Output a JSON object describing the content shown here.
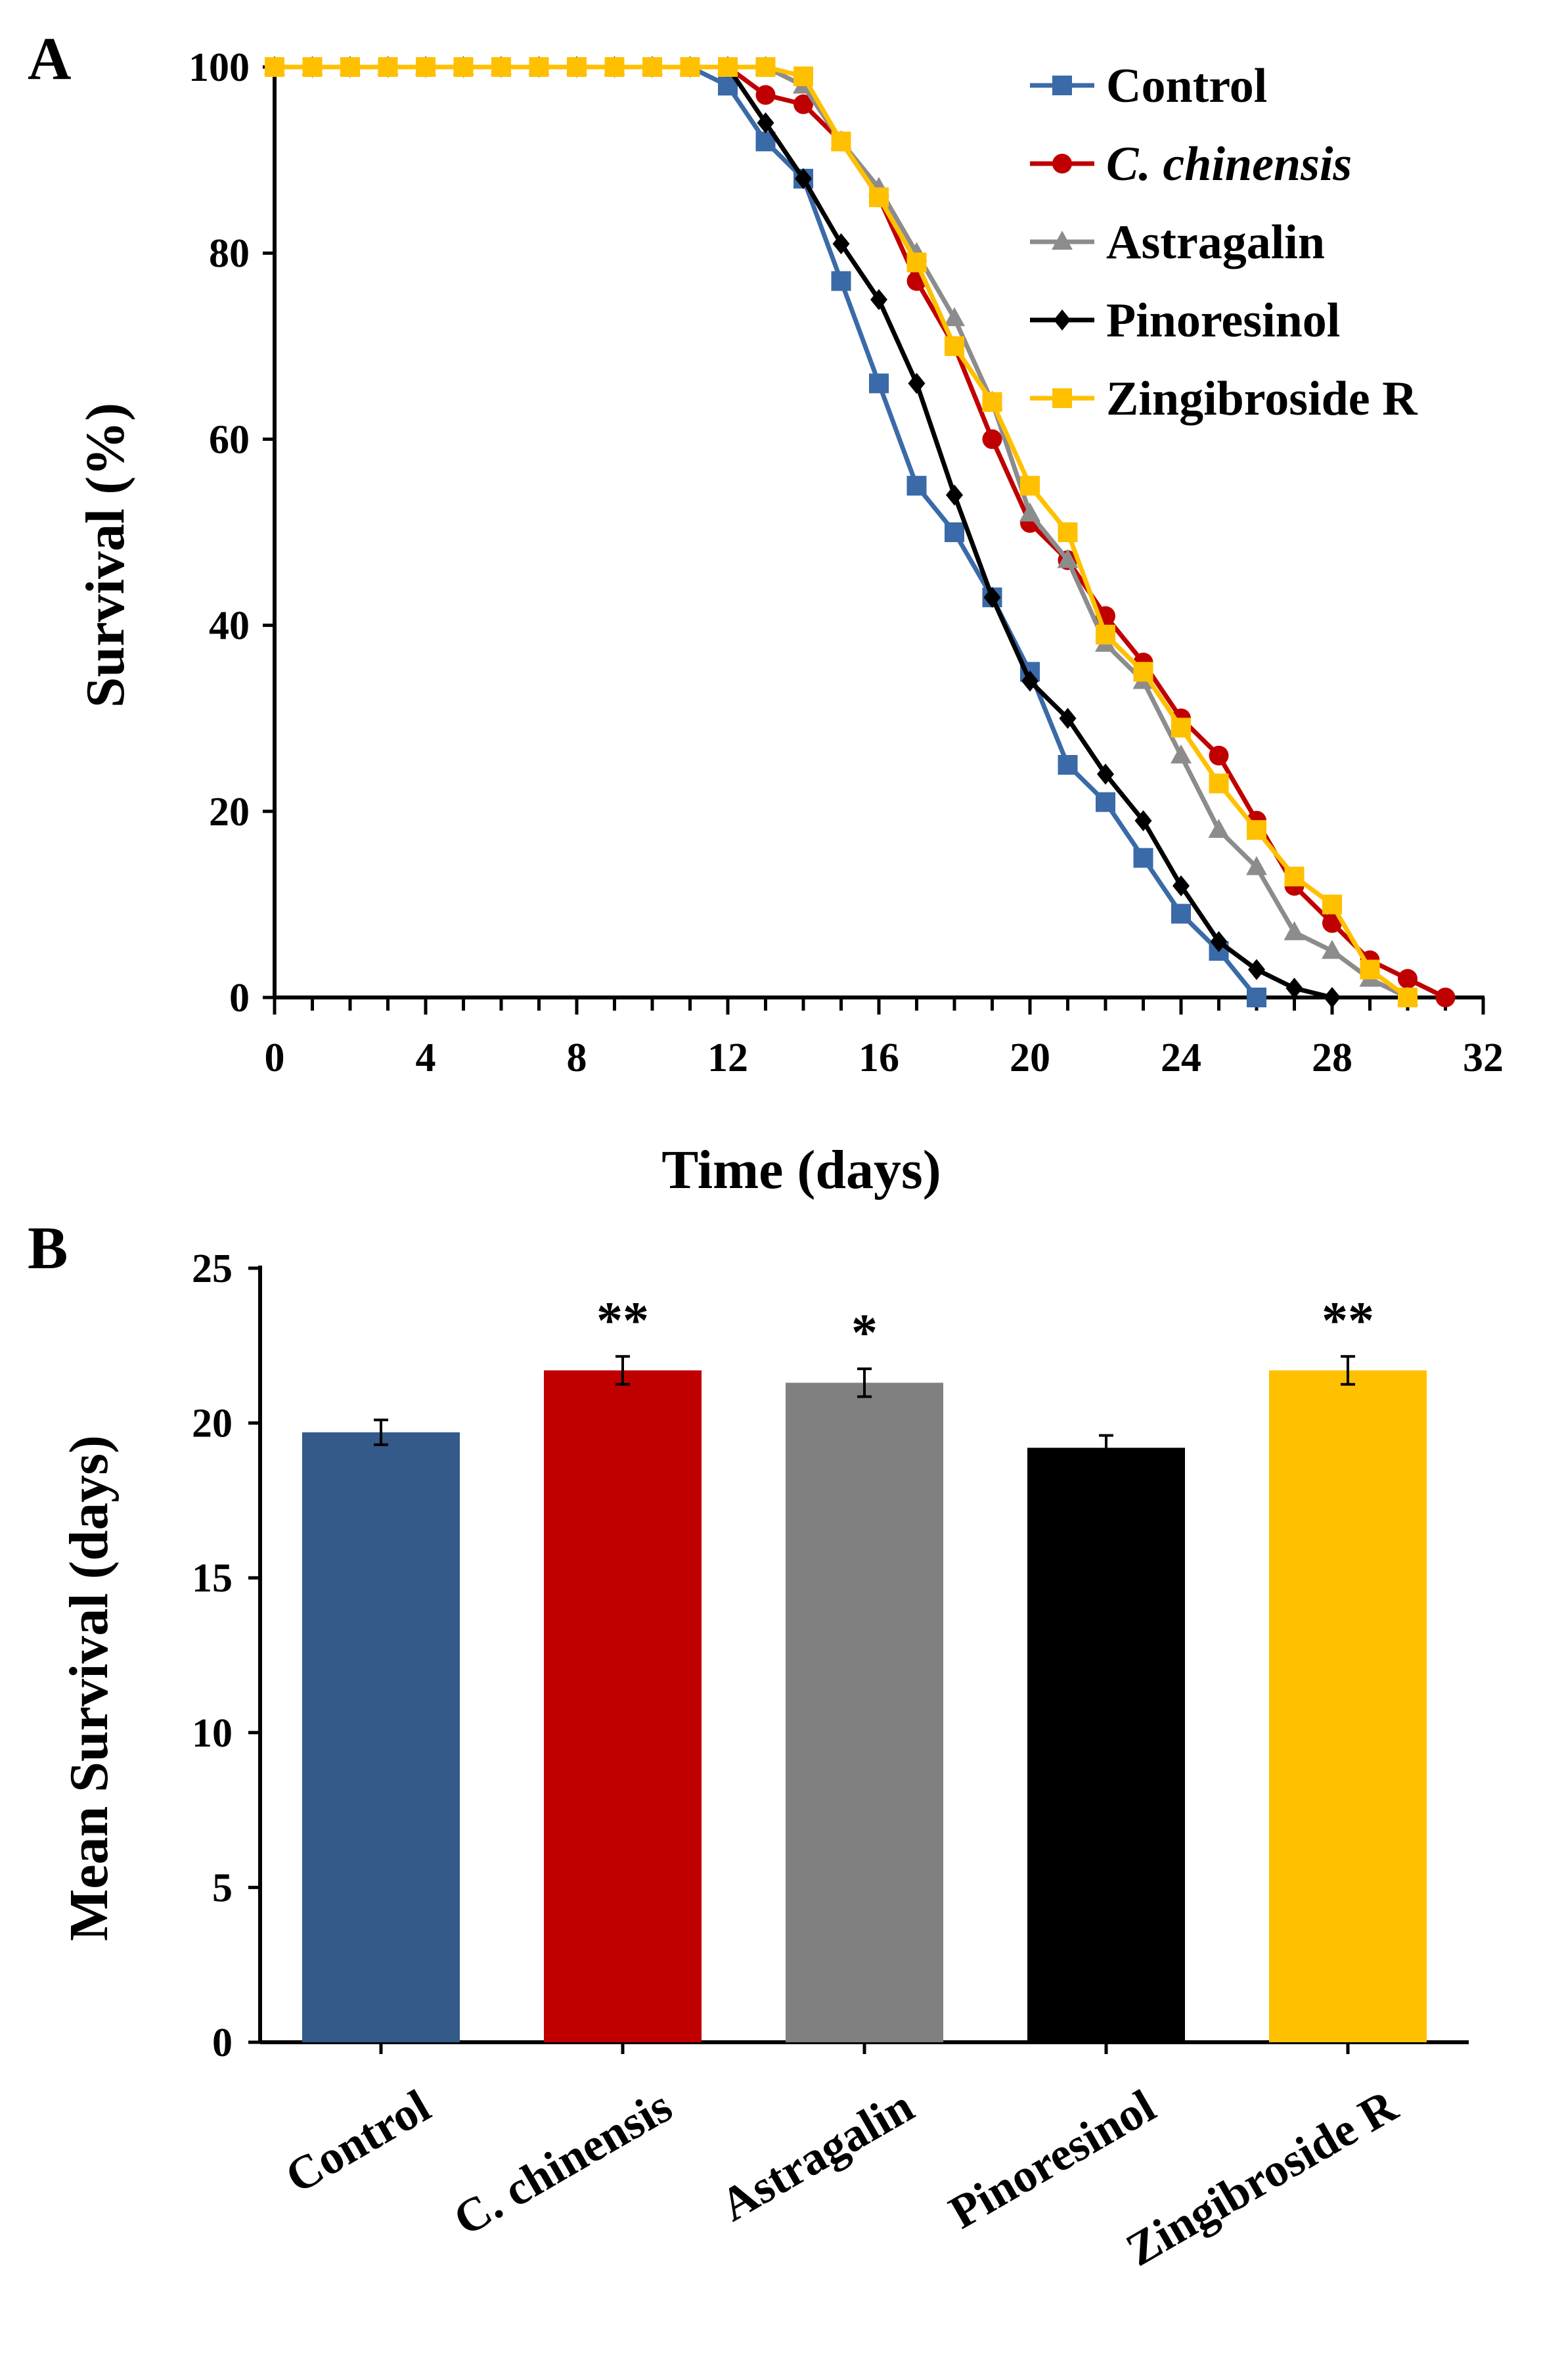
{
  "chart_data": [
    {
      "panel": "A",
      "type": "line",
      "xlabel": "Time (days)",
      "ylabel": "Survival (%)",
      "xlim": [
        0,
        32
      ],
      "ylim": [
        0,
        100
      ],
      "xticks": [
        0,
        4,
        8,
        12,
        16,
        20,
        24,
        28,
        32
      ],
      "yticks": [
        0,
        20,
        40,
        60,
        80,
        100
      ],
      "x_minor_step": 1,
      "grid": false,
      "legend_position": "top-right",
      "series": [
        {
          "name": "Control",
          "color": "#3a6aa8",
          "marker": "square",
          "italic": false,
          "x": [
            0,
            1,
            2,
            3,
            4,
            5,
            6,
            7,
            8,
            9,
            10,
            11,
            12,
            13,
            14,
            15,
            16,
            17,
            18,
            19,
            20,
            21,
            22,
            23,
            24,
            25,
            26
          ],
          "values": [
            100,
            100,
            100,
            100,
            100,
            100,
            100,
            100,
            100,
            100,
            100,
            100,
            98,
            92,
            88,
            77,
            66,
            55,
            50,
            43,
            35,
            25,
            21,
            15,
            9,
            5,
            0
          ]
        },
        {
          "name": "C. chinensis",
          "color": "#c00000",
          "marker": "circle",
          "italic": true,
          "x": [
            0,
            1,
            2,
            3,
            4,
            5,
            6,
            7,
            8,
            9,
            10,
            11,
            12,
            13,
            14,
            15,
            16,
            17,
            18,
            19,
            20,
            21,
            22,
            23,
            24,
            25,
            26,
            27,
            28,
            29,
            30,
            31
          ],
          "values": [
            100,
            100,
            100,
            100,
            100,
            100,
            100,
            100,
            100,
            100,
            100,
            100,
            100,
            97,
            96,
            92,
            86,
            77,
            70,
            60,
            51,
            47,
            41,
            36,
            30,
            26,
            19,
            12,
            8,
            4,
            2,
            0
          ]
        },
        {
          "name": "Astragalin",
          "color": "#8c8c8c",
          "marker": "triangle",
          "italic": false,
          "x": [
            0,
            1,
            2,
            3,
            4,
            5,
            6,
            7,
            8,
            9,
            10,
            11,
            12,
            13,
            14,
            15,
            16,
            17,
            18,
            19,
            20,
            21,
            22,
            23,
            24,
            25,
            26,
            27,
            28,
            29,
            30
          ],
          "values": [
            100,
            100,
            100,
            100,
            100,
            100,
            100,
            100,
            100,
            100,
            100,
            100,
            100,
            100,
            98,
            92,
            87,
            80,
            73,
            64,
            52,
            47,
            38,
            34,
            26,
            18,
            14,
            7,
            5,
            2,
            0
          ]
        },
        {
          "name": "Pinoresinol",
          "color": "#000000",
          "marker": "diamond",
          "italic": false,
          "x": [
            0,
            1,
            2,
            3,
            4,
            5,
            6,
            7,
            8,
            9,
            10,
            11,
            12,
            13,
            14,
            15,
            16,
            17,
            18,
            19,
            20,
            21,
            22,
            23,
            24,
            25,
            26,
            27,
            28
          ],
          "values": [
            100,
            100,
            100,
            100,
            100,
            100,
            100,
            100,
            100,
            100,
            100,
            100,
            100,
            94,
            88,
            81,
            75,
            66,
            54,
            43,
            34,
            30,
            24,
            19,
            12,
            6,
            3,
            1,
            0
          ]
        },
        {
          "name": "Zingibroside R",
          "color": "#ffc000",
          "marker": "square",
          "italic": false,
          "x": [
            0,
            1,
            2,
            3,
            4,
            5,
            6,
            7,
            8,
            9,
            10,
            11,
            12,
            13,
            14,
            15,
            16,
            17,
            18,
            19,
            20,
            21,
            22,
            23,
            24,
            25,
            26,
            27,
            28,
            29,
            30
          ],
          "values": [
            100,
            100,
            100,
            100,
            100,
            100,
            100,
            100,
            100,
            100,
            100,
            100,
            100,
            100,
            99,
            92,
            86,
            79,
            70,
            64,
            55,
            50,
            39,
            35,
            29,
            23,
            18,
            13,
            10,
            3,
            0
          ]
        }
      ]
    },
    {
      "panel": "B",
      "type": "bar",
      "ylabel": "Mean Survival (days)",
      "ylim": [
        0,
        25
      ],
      "yticks": [
        0,
        5,
        10,
        15,
        20,
        25
      ],
      "grid": false,
      "categories": [
        "Control",
        "C. chinensis",
        "Astragalin",
        "Pinoresinol",
        "Zingibroside R"
      ],
      "values": [
        19.7,
        21.7,
        21.3,
        19.2,
        21.7
      ],
      "errors": [
        0.4,
        0.45,
        0.45,
        0.4,
        0.45
      ],
      "colors": [
        "#335a88",
        "#c00000",
        "#808080",
        "#000000",
        "#ffc000"
      ],
      "significance": [
        "",
        "**",
        "*",
        "",
        "**"
      ]
    }
  ]
}
